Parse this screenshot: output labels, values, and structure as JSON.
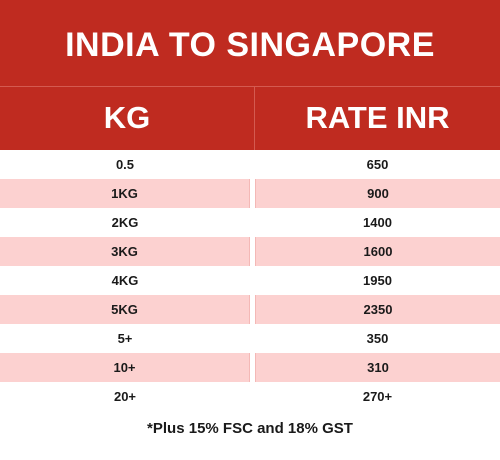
{
  "title": "INDIA TO SINGAPORE",
  "headers": {
    "kg": "KG",
    "rate": "RATE INR"
  },
  "rows": [
    {
      "kg": "0.5",
      "rate": "650"
    },
    {
      "kg": "1KG",
      "rate": "900"
    },
    {
      "kg": "2KG",
      "rate": "1400"
    },
    {
      "kg": "3KG",
      "rate": "1600"
    },
    {
      "kg": "4KG",
      "rate": "1950"
    },
    {
      "kg": "5KG",
      "rate": "2350"
    },
    {
      "kg": "5+",
      "rate": "350"
    },
    {
      "kg": "10+",
      "rate": "310"
    },
    {
      "kg": "20+",
      "rate": "270+"
    }
  ],
  "footnote": "*Plus 15% FSC and 18% GST",
  "colors": {
    "header": "#bf2b20",
    "shade": "#fcd1d0",
    "text": "#1a1a1a"
  }
}
